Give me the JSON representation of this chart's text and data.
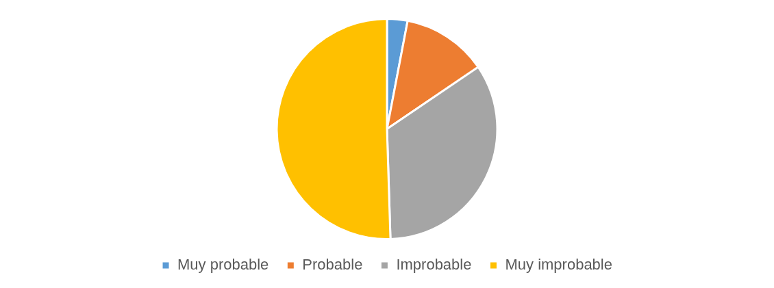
{
  "chart_data": {
    "type": "pie",
    "categories": [
      "Muy probable",
      "Probable",
      "Improbable",
      "Muy improbable"
    ],
    "values": [
      3,
      12.5,
      34,
      50.5
    ],
    "colors": [
      "#5b9bd5",
      "#ed7d31",
      "#a5a5a5",
      "#ffc000"
    ],
    "legend": "bottom"
  }
}
